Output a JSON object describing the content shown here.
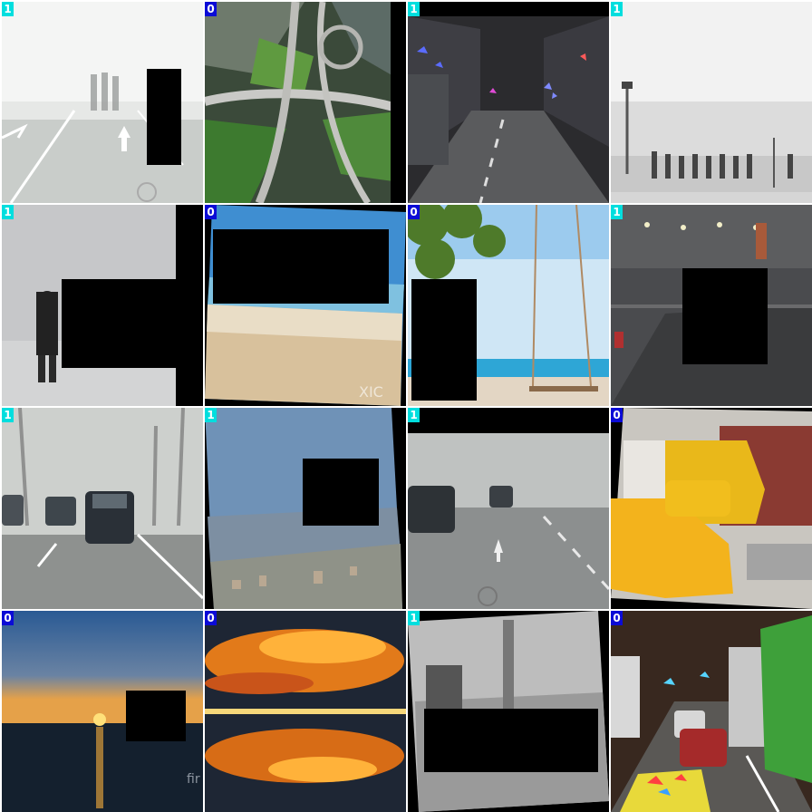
{
  "grid": {
    "rows": 4,
    "cols": 4,
    "badge_colors": {
      "0": "#0b0bd6",
      "1": "#00dede"
    },
    "tiles": [
      {
        "label": "1",
        "scene": "foggy road with pedestrians, occluded by black box"
      },
      {
        "label": "0",
        "scene": "aerial highway interchange"
      },
      {
        "label": "1",
        "scene": "dark city street with color artifacts"
      },
      {
        "label": "1",
        "scene": "foggy plaza with crowd and lamp posts"
      },
      {
        "label": "1",
        "scene": "police officer in fog, occluded"
      },
      {
        "label": "0",
        "scene": "beach and sea, rotated, occluded"
      },
      {
        "label": "0",
        "scene": "rope swing on beach with tree, occluded"
      },
      {
        "label": "1",
        "scene": "night foggy street with lights, occluded"
      },
      {
        "label": "1",
        "scene": "cars on foggy tree-lined road"
      },
      {
        "label": "1",
        "scene": "hazy aerial city view, rotated, occluded"
      },
      {
        "label": "1",
        "scene": "foggy road with cars"
      },
      {
        "label": "0",
        "scene": "yellow taxi and trucks on street"
      },
      {
        "label": "0",
        "scene": "sunset over sea, occluded"
      },
      {
        "label": "0",
        "scene": "fiery sunset clouds reflected in water"
      },
      {
        "label": "1",
        "scene": "grayscale foggy scene, rotated, occluded"
      },
      {
        "label": "0",
        "scene": "traffic jam with trucks, color artifacts"
      }
    ]
  },
  "watermarks": {
    "beach": "XIC",
    "sunset": "fir an"
  }
}
